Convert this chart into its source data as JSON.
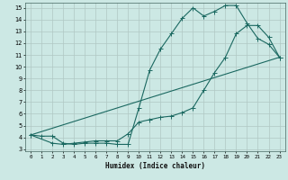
{
  "xlabel": "Humidex (Indice chaleur)",
  "bg_color": "#cce8e4",
  "grid_color": "#b0c8c4",
  "line_color": "#1a6860",
  "xlim": [
    -0.5,
    23.5
  ],
  "ylim": [
    2.8,
    15.4
  ],
  "xticks": [
    0,
    1,
    2,
    3,
    4,
    5,
    6,
    7,
    8,
    9,
    10,
    11,
    12,
    13,
    14,
    15,
    16,
    17,
    18,
    19,
    20,
    21,
    22,
    23
  ],
  "yticks": [
    3,
    4,
    5,
    6,
    7,
    8,
    9,
    10,
    11,
    12,
    13,
    14,
    15
  ],
  "line1_x": [
    0,
    1,
    2,
    3,
    4,
    5,
    6,
    7,
    8,
    9,
    10,
    11,
    12,
    13,
    14,
    15,
    16,
    17,
    18,
    19,
    20,
    21,
    22,
    23
  ],
  "line1_y": [
    4.2,
    4.1,
    4.1,
    3.5,
    3.4,
    3.5,
    3.5,
    3.5,
    3.4,
    3.4,
    6.5,
    9.7,
    11.5,
    12.8,
    14.1,
    15.0,
    14.3,
    14.7,
    15.2,
    15.2,
    13.7,
    12.4,
    11.9,
    10.8
  ],
  "line2_x": [
    0,
    2,
    3,
    4,
    5,
    6,
    7,
    8,
    9,
    10,
    11,
    12,
    13,
    14,
    15,
    16,
    17,
    18,
    19,
    20,
    21,
    22,
    23
  ],
  "line2_y": [
    4.2,
    3.5,
    3.4,
    3.5,
    3.6,
    3.7,
    3.7,
    3.7,
    4.3,
    5.3,
    5.5,
    5.7,
    5.8,
    6.1,
    6.5,
    8.0,
    9.5,
    10.8,
    12.8,
    13.5,
    13.5,
    12.5,
    10.8
  ],
  "line3_x": [
    0,
    23
  ],
  "line3_y": [
    4.2,
    10.8
  ]
}
